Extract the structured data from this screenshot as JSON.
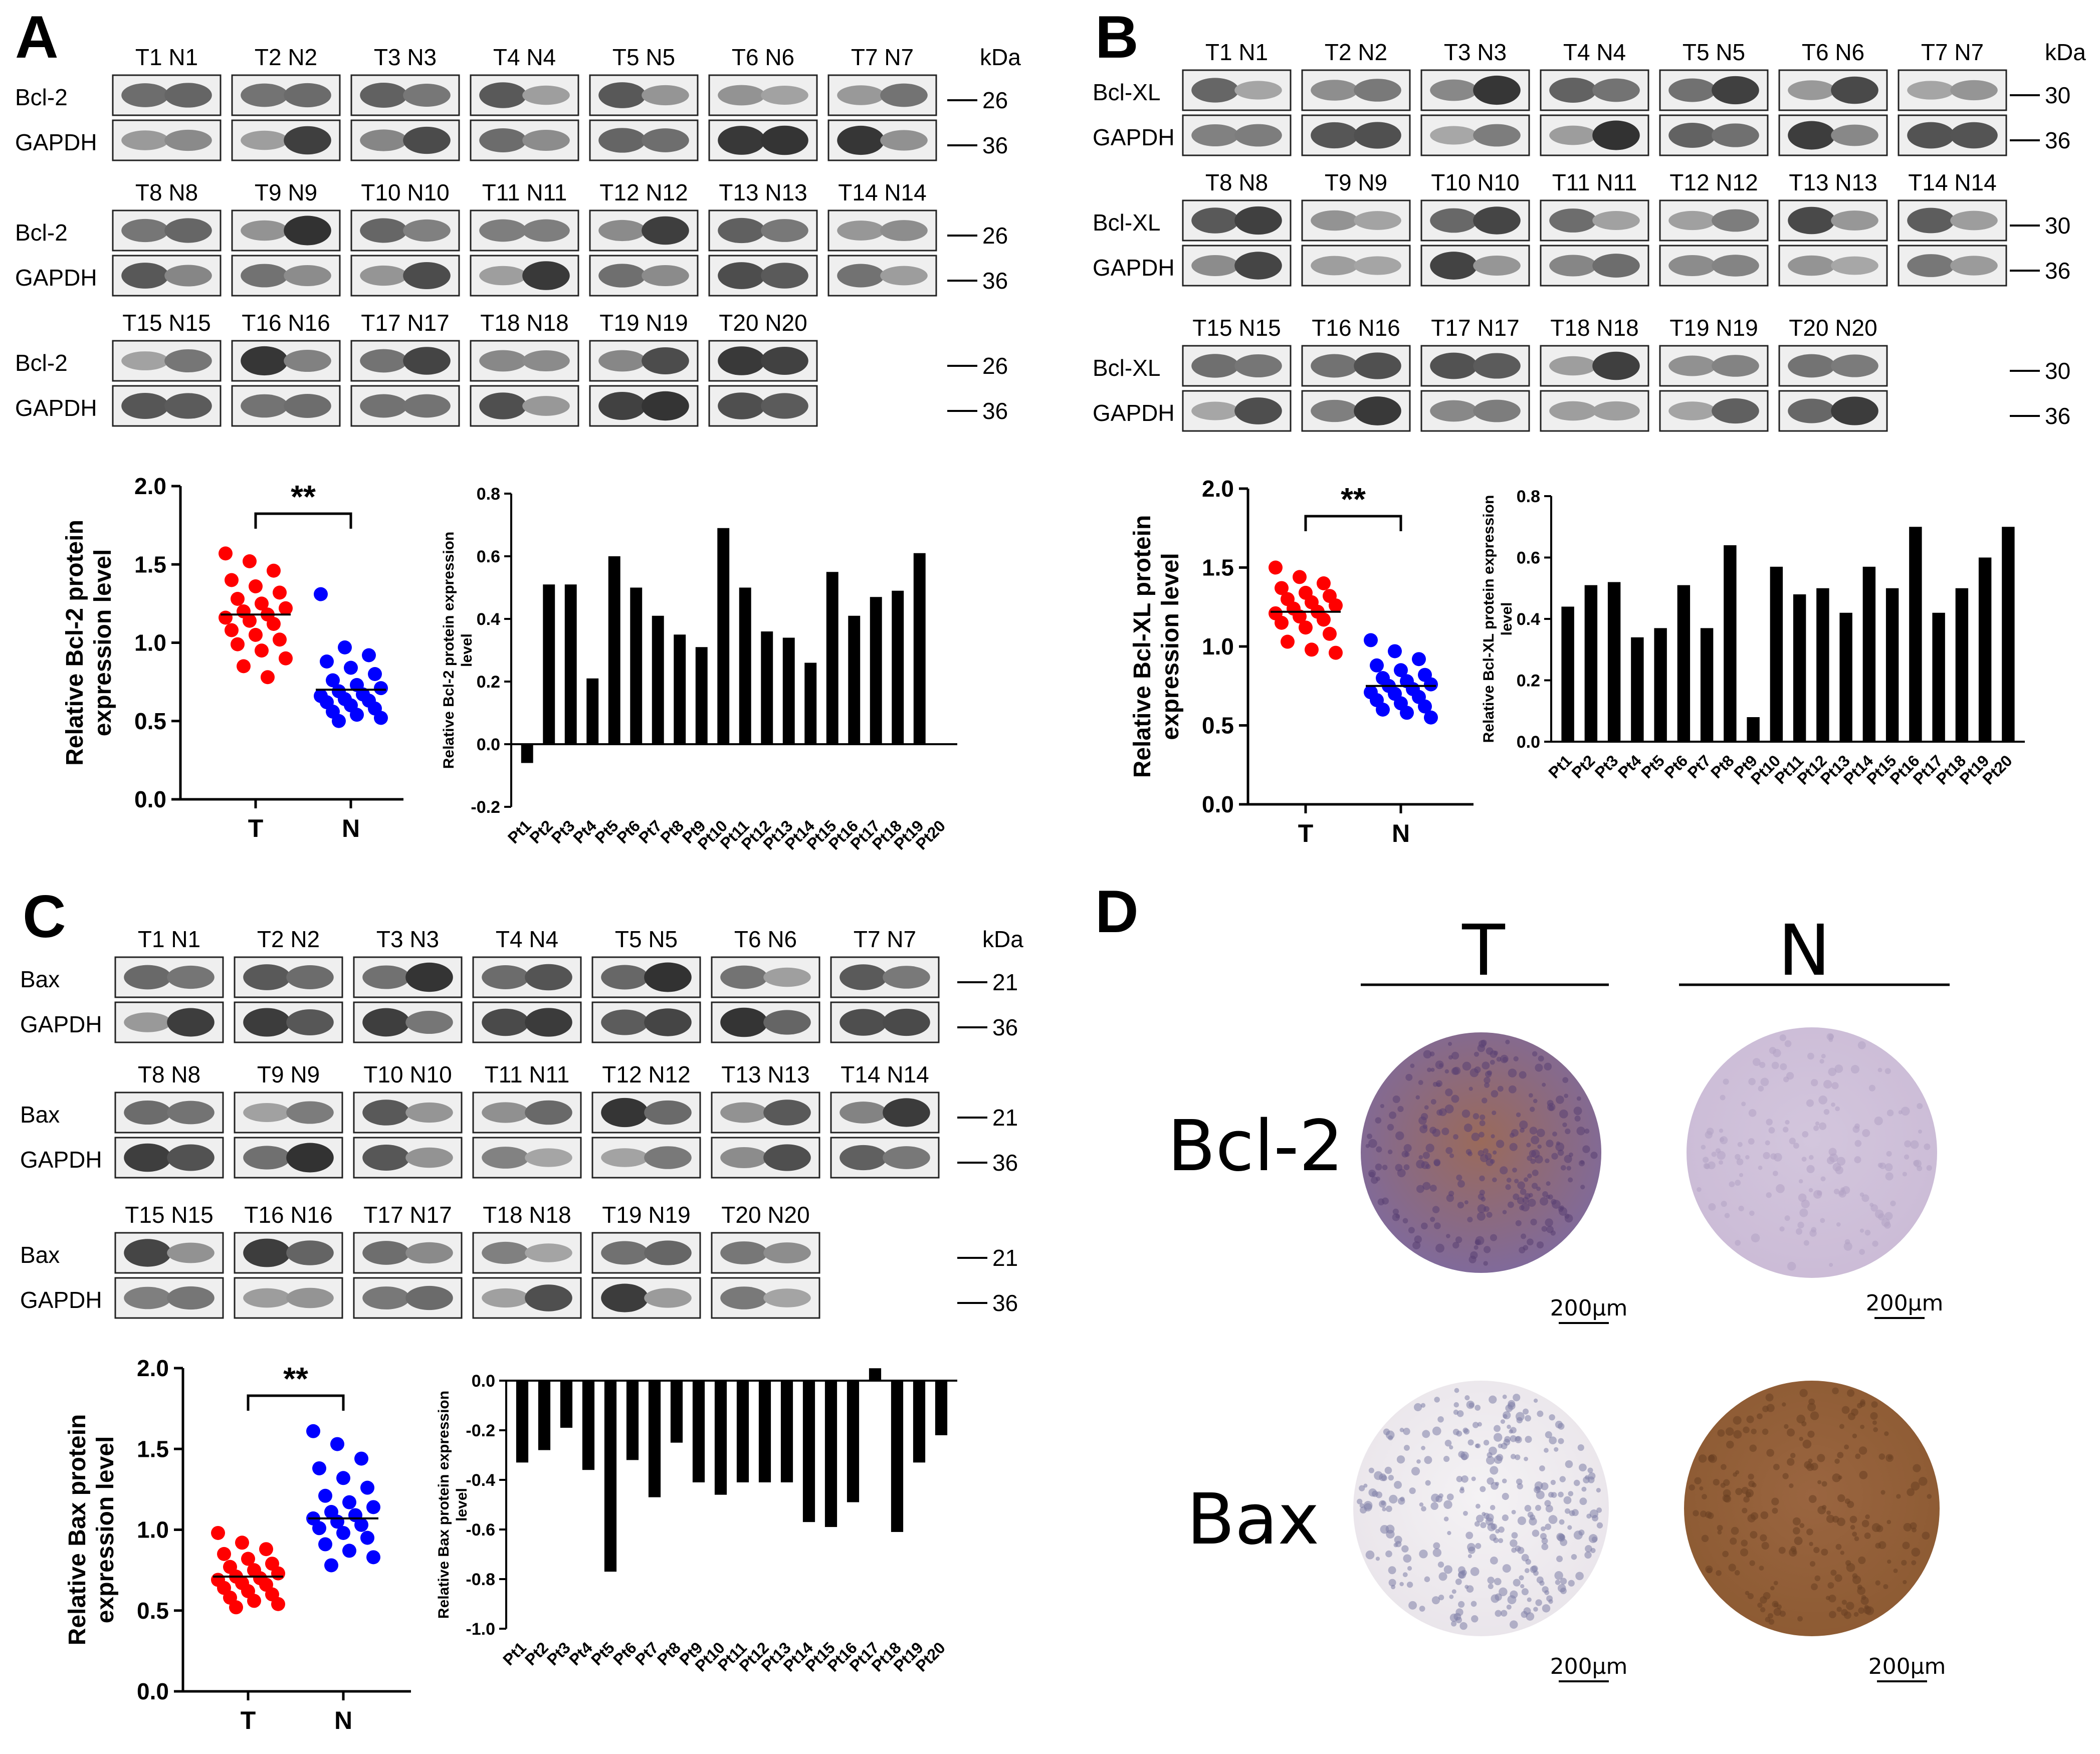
{
  "figure": {
    "panels": {
      "A": {
        "letter": "A",
        "kda": "kDa",
        "rows": [
          {
            "pairs": [
              "T1 N1",
              "T2 N2",
              "T3 N3",
              "T4 N4",
              "T5 N5",
              "T6 N6",
              "T7 N7"
            ],
            "protein": "Bcl-2",
            "loading": "GAPDH",
            "mw_protein": "26",
            "mw_loading": "36"
          },
          {
            "pairs": [
              "T8 N8",
              "T9 N9",
              "T10 N10",
              "T11 N11",
              "T12 N12",
              "T13 N13",
              "T14 N14"
            ],
            "protein": "Bcl-2",
            "loading": "GAPDH",
            "mw_protein": "26",
            "mw_loading": "36"
          },
          {
            "pairs": [
              "T15 N15",
              "T16 N16",
              "T17 N17",
              "T18 N18",
              "T19 N19",
              "T20 N20"
            ],
            "protein": "Bcl-2",
            "loading": "GAPDH",
            "mw_protein": "26",
            "mw_loading": "36"
          }
        ]
      },
      "B": {
        "letter": "B",
        "kda": "kDa",
        "rows": [
          {
            "pairs": [
              "T1 N1",
              "T2 N2",
              "T3 N3",
              "T4 N4",
              "T5 N5",
              "T6 N6",
              "T7 N7"
            ],
            "protein": "Bcl-XL",
            "loading": "GAPDH",
            "mw_protein": "30",
            "mw_loading": "36"
          },
          {
            "pairs": [
              "T8 N8",
              "T9 N9",
              "T10 N10",
              "T11 N11",
              "T12 N12",
              "T13 N13",
              "T14 N14"
            ],
            "protein": "Bcl-XL",
            "loading": "GAPDH",
            "mw_protein": "30",
            "mw_loading": "36"
          },
          {
            "pairs": [
              "T15 N15",
              "T16 N16",
              "T17 N17",
              "T18 N18",
              "T19 N19",
              "T20 N20"
            ],
            "protein": "Bcl-XL",
            "loading": "GAPDH",
            "mw_protein": "30",
            "mw_loading": "36"
          }
        ]
      },
      "C": {
        "letter": "C",
        "kda": "kDa",
        "rows": [
          {
            "pairs": [
              "T1 N1",
              "T2 N2",
              "T3 N3",
              "T4 N4",
              "T5 N5",
              "T6 N6",
              "T7 N7"
            ],
            "protein": "Bax",
            "loading": "GAPDH",
            "mw_protein": "21",
            "mw_loading": "36"
          },
          {
            "pairs": [
              "T8 N8",
              "T9 N9",
              "T10 N10",
              "T11 N11",
              "T12 N12",
              "T13 N13",
              "T14 N14"
            ],
            "protein": "Bax",
            "loading": "GAPDH",
            "mw_protein": "21",
            "mw_loading": "36"
          },
          {
            "pairs": [
              "T15 N15",
              "T16 N16",
              "T17 N17",
              "T18 N18",
              "T19 N19",
              "T20 N20"
            ],
            "protein": "Bax",
            "loading": "GAPDH",
            "mw_protein": "21",
            "mw_loading": "36"
          }
        ]
      },
      "D": {
        "letter": "D",
        "col_t": "T",
        "col_n": "N",
        "row1": "Bcl-2",
        "row2": "Bax",
        "scalebar": "200μm",
        "colors": {
          "purple_dark": "#7e6aa0",
          "purple_light": "#cbbbd6",
          "brown": "#8c5a32",
          "pale": "#e9e4ea"
        }
      }
    },
    "colors": {
      "tumor": "#ff0000",
      "normal": "#0000ff",
      "bar": "#000000"
    }
  },
  "chart_data": [
    {
      "id": "A-scatter",
      "type": "scatter",
      "ylabel": "Relative Bcl-2 protein expression level",
      "categories": [
        "T",
        "N"
      ],
      "ylim": [
        0,
        2.0
      ],
      "yticks": [
        "0.0",
        "0.5",
        "1.0",
        "1.5",
        "2.0"
      ],
      "significance": "**",
      "series": [
        {
          "name": "T",
          "color": "#ff0000",
          "mean": 1.18,
          "values": [
            1.57,
            1.52,
            1.46,
            1.4,
            1.36,
            1.32,
            1.28,
            1.25,
            1.22,
            1.2,
            1.18,
            1.16,
            1.14,
            1.12,
            1.08,
            1.05,
            1.02,
            0.99,
            0.95,
            0.9,
            0.85,
            0.78
          ]
        },
        {
          "name": "N",
          "color": "#0000ff",
          "mean": 0.7,
          "values": [
            1.31,
            0.97,
            0.92,
            0.88,
            0.84,
            0.8,
            0.76,
            0.73,
            0.71,
            0.69,
            0.67,
            0.66,
            0.64,
            0.63,
            0.62,
            0.6,
            0.58,
            0.56,
            0.54,
            0.52,
            0.5
          ]
        }
      ]
    },
    {
      "id": "A-bar",
      "type": "bar",
      "ylabel": "Relative Bcl-2 protein expression level",
      "categories": [
        "Pt1",
        "Pt2",
        "Pt3",
        "Pt4",
        "Pt5",
        "Pt6",
        "Pt7",
        "Pt8",
        "Pt9",
        "Pt10",
        "Pt11",
        "Pt12",
        "Pt13",
        "Pt14",
        "Pt15",
        "Pt16",
        "Pt17",
        "Pt18",
        "Pt19",
        "Pt20"
      ],
      "values": [
        -0.06,
        0.51,
        0.51,
        0.21,
        0.6,
        0.5,
        0.41,
        0.35,
        0.31,
        0.69,
        0.5,
        0.36,
        0.34,
        0.26,
        0.55,
        0.41,
        0.47,
        0.49,
        0.61,
        0.0
      ],
      "ylim": [
        -0.2,
        0.8
      ],
      "yticks": [
        "-0.2",
        "0.0",
        "0.2",
        "0.4",
        "0.6",
        "0.8"
      ]
    },
    {
      "id": "B-scatter",
      "type": "scatter",
      "ylabel": "Relative Bcl-XL protein expression level",
      "categories": [
        "T",
        "N"
      ],
      "ylim": [
        0,
        2.0
      ],
      "yticks": [
        "0.0",
        "0.5",
        "1.0",
        "1.5",
        "2.0"
      ],
      "significance": "**",
      "series": [
        {
          "name": "T",
          "color": "#ff0000",
          "mean": 1.22,
          "values": [
            1.5,
            1.44,
            1.4,
            1.37,
            1.34,
            1.32,
            1.3,
            1.28,
            1.26,
            1.24,
            1.22,
            1.21,
            1.19,
            1.17,
            1.15,
            1.12,
            1.08,
            1.03,
            0.98,
            0.96
          ]
        },
        {
          "name": "N",
          "color": "#0000ff",
          "mean": 0.75,
          "values": [
            1.04,
            0.97,
            0.92,
            0.88,
            0.85,
            0.82,
            0.8,
            0.78,
            0.76,
            0.75,
            0.73,
            0.71,
            0.7,
            0.68,
            0.66,
            0.64,
            0.62,
            0.6,
            0.58,
            0.55
          ]
        }
      ]
    },
    {
      "id": "B-bar",
      "type": "bar",
      "ylabel": "Relative Bcl-XL protein expression level",
      "categories": [
        "Pt1",
        "Pt2",
        "Pt3",
        "Pt4",
        "Pt5",
        "Pt6",
        "Pt7",
        "Pt8",
        "Pt9",
        "Pt10",
        "Pt11",
        "Pt12",
        "Pt13",
        "Pt14",
        "Pt15",
        "Pt16",
        "Pt17",
        "Pt18",
        "Pt19",
        "Pt20"
      ],
      "values": [
        0.44,
        0.51,
        0.52,
        0.34,
        0.37,
        0.51,
        0.37,
        0.64,
        0.08,
        0.57,
        0.48,
        0.5,
        0.42,
        0.57,
        0.5,
        0.7,
        0.42,
        0.5,
        0.6,
        0.7
      ],
      "ylim": [
        0.0,
        0.8
      ],
      "yticks": [
        "0.0",
        "0.2",
        "0.4",
        "0.6",
        "0.8"
      ]
    },
    {
      "id": "C-scatter",
      "type": "scatter",
      "ylabel": "Relative Bax protein expression level",
      "categories": [
        "T",
        "N"
      ],
      "ylim": [
        0,
        2.0
      ],
      "yticks": [
        "0.0",
        "0.5",
        "1.0",
        "1.5",
        "2.0"
      ],
      "significance": "**",
      "series": [
        {
          "name": "T",
          "color": "#ff0000",
          "mean": 0.71,
          "values": [
            0.98,
            0.92,
            0.88,
            0.85,
            0.82,
            0.79,
            0.77,
            0.75,
            0.73,
            0.71,
            0.7,
            0.69,
            0.67,
            0.66,
            0.64,
            0.62,
            0.6,
            0.58,
            0.56,
            0.54,
            0.52
          ]
        },
        {
          "name": "N",
          "color": "#0000ff",
          "mean": 1.07,
          "values": [
            1.61,
            1.53,
            1.44,
            1.38,
            1.32,
            1.26,
            1.21,
            1.17,
            1.14,
            1.11,
            1.09,
            1.07,
            1.05,
            1.03,
            1.01,
            0.98,
            0.95,
            0.91,
            0.87,
            0.83,
            0.78
          ]
        }
      ]
    },
    {
      "id": "C-bar",
      "type": "bar",
      "ylabel": "Relative Bax protein expression level",
      "categories": [
        "Pt1",
        "Pt2",
        "Pt3",
        "Pt4",
        "Pt5",
        "Pt6",
        "Pt7",
        "Pt8",
        "Pt9",
        "Pt10",
        "Pt11",
        "Pt12",
        "Pt13",
        "Pt14",
        "Pt15",
        "Pt16",
        "Pt17",
        "Pt18",
        "Pt19",
        "Pt20"
      ],
      "values": [
        -0.33,
        -0.28,
        -0.19,
        -0.36,
        -0.77,
        -0.32,
        -0.47,
        -0.25,
        -0.41,
        -0.46,
        -0.41,
        -0.41,
        -0.41,
        -0.57,
        -0.59,
        -0.49,
        0.05,
        -0.61,
        -0.33,
        -0.22
      ],
      "ylim": [
        -1.0,
        0.0
      ],
      "yticks": [
        "-1.0",
        "-0.8",
        "-0.6",
        "-0.4",
        "-0.2",
        "0.0"
      ]
    }
  ]
}
